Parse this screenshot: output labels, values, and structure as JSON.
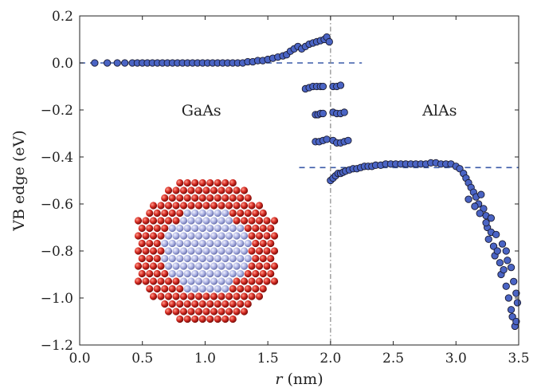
{
  "chart_data": {
    "type": "scatter",
    "xlabel_var": "r",
    "xlabel_unit": " (nm)",
    "ylabel": "VB edge (eV)",
    "xlim": [
      0.0,
      3.5
    ],
    "ylim": [
      -1.2,
      0.2
    ],
    "x_ticks": [
      0.0,
      0.5,
      1.0,
      1.5,
      2.0,
      2.5,
      3.0,
      3.5
    ],
    "x_tick_labels": [
      "0.0",
      "0.5",
      "1.0",
      "1.5",
      "2.0",
      "2.5",
      "3.0",
      "3.5"
    ],
    "y_ticks": [
      0.2,
      0.0,
      -0.2,
      -0.4,
      -0.6,
      -0.8,
      -1.0,
      -1.2
    ],
    "y_tick_labels": [
      "0.2",
      "0.0",
      "−0.2",
      "−0.4",
      "−0.6",
      "−0.8",
      "−1.0",
      "−1.2"
    ],
    "annotations": [
      {
        "text": "GaAs",
        "x": 0.97,
        "y": -0.2
      },
      {
        "text": "AlAs",
        "x": 2.87,
        "y": -0.2
      }
    ],
    "reference_lines": [
      {
        "kind": "hline",
        "y": 0.0,
        "x_range": [
          0.0,
          2.25
        ],
        "style": "dashed",
        "color": "#3a5aa8"
      },
      {
        "kind": "hline",
        "y": -0.445,
        "x_range": [
          1.75,
          3.5
        ],
        "style": "dashed",
        "color": "#3a5aa8"
      },
      {
        "kind": "vline",
        "x": 2.0,
        "style": "dash-dot",
        "color": "#888888"
      }
    ],
    "marker_color": "#4a64c4",
    "marker_edge": "#1a1a2e",
    "inset": {
      "description_icon": "nanoparticle-structure",
      "core_color": "#a9b0e0",
      "shell_color": "#cc2a2a"
    },
    "series": [
      {
        "points": [
          [
            0.12,
            0.0
          ],
          [
            0.22,
            0.0
          ],
          [
            0.3,
            0.0
          ],
          [
            0.36,
            0.0
          ],
          [
            0.42,
            0.0
          ],
          [
            0.46,
            0.0
          ],
          [
            0.5,
            0.0
          ],
          [
            0.54,
            0.0
          ],
          [
            0.58,
            0.0
          ],
          [
            0.62,
            0.0
          ],
          [
            0.66,
            0.0
          ],
          [
            0.7,
            0.0
          ],
          [
            0.74,
            0.0
          ],
          [
            0.78,
            0.0
          ],
          [
            0.82,
            0.0
          ],
          [
            0.86,
            0.0
          ],
          [
            0.9,
            0.0
          ],
          [
            0.94,
            0.0
          ],
          [
            0.98,
            0.0
          ],
          [
            1.02,
            0.0
          ],
          [
            1.06,
            0.0
          ],
          [
            1.1,
            0.0
          ],
          [
            1.14,
            0.0
          ],
          [
            1.18,
            0.0
          ],
          [
            1.22,
            0.0
          ],
          [
            1.26,
            0.0
          ],
          [
            1.3,
            0.0
          ],
          [
            1.34,
            0.005
          ],
          [
            1.38,
            0.005
          ],
          [
            1.42,
            0.01
          ],
          [
            1.46,
            0.01
          ],
          [
            1.5,
            0.015
          ],
          [
            1.54,
            0.02
          ],
          [
            1.58,
            0.025
          ],
          [
            1.62,
            0.03
          ],
          [
            1.65,
            0.035
          ],
          [
            1.68,
            0.05
          ],
          [
            1.71,
            0.06
          ],
          [
            1.74,
            0.07
          ],
          [
            1.77,
            0.06
          ],
          [
            1.8,
            0.07
          ],
          [
            1.83,
            0.08
          ],
          [
            1.86,
            0.085
          ],
          [
            1.89,
            0.09
          ],
          [
            1.92,
            0.095
          ],
          [
            1.95,
            0.1
          ],
          [
            1.97,
            0.11
          ],
          [
            1.99,
            0.09
          ],
          [
            1.8,
            -0.11
          ],
          [
            1.83,
            -0.105
          ],
          [
            1.86,
            -0.1
          ],
          [
            1.89,
            -0.1
          ],
          [
            1.92,
            -0.1
          ],
          [
            1.94,
            -0.1
          ],
          [
            1.88,
            -0.22
          ],
          [
            1.9,
            -0.22
          ],
          [
            1.92,
            -0.215
          ],
          [
            1.94,
            -0.215
          ],
          [
            1.88,
            -0.335
          ],
          [
            1.91,
            -0.335
          ],
          [
            1.94,
            -0.33
          ],
          [
            1.97,
            -0.325
          ],
          [
            2.02,
            -0.33
          ],
          [
            2.05,
            -0.34
          ],
          [
            2.08,
            -0.34
          ],
          [
            2.11,
            -0.335
          ],
          [
            2.14,
            -0.33
          ],
          [
            2.02,
            -0.21
          ],
          [
            2.05,
            -0.215
          ],
          [
            2.08,
            -0.215
          ],
          [
            2.11,
            -0.21
          ],
          [
            2.02,
            -0.1
          ],
          [
            2.05,
            -0.1
          ],
          [
            2.08,
            -0.095
          ],
          [
            2.0,
            -0.5
          ],
          [
            2.02,
            -0.49
          ],
          [
            2.04,
            -0.48
          ],
          [
            2.06,
            -0.47
          ],
          [
            2.08,
            -0.47
          ],
          [
            2.1,
            -0.465
          ],
          [
            2.12,
            -0.46
          ],
          [
            2.15,
            -0.455
          ],
          [
            2.18,
            -0.45
          ],
          [
            2.21,
            -0.45
          ],
          [
            2.24,
            -0.445
          ],
          [
            2.27,
            -0.44
          ],
          [
            2.3,
            -0.44
          ],
          [
            2.33,
            -0.44
          ],
          [
            2.36,
            -0.435
          ],
          [
            2.4,
            -0.435
          ],
          [
            2.44,
            -0.43
          ],
          [
            2.48,
            -0.43
          ],
          [
            2.52,
            -0.43
          ],
          [
            2.56,
            -0.43
          ],
          [
            2.6,
            -0.43
          ],
          [
            2.64,
            -0.43
          ],
          [
            2.68,
            -0.43
          ],
          [
            2.72,
            -0.43
          ],
          [
            2.76,
            -0.43
          ],
          [
            2.8,
            -0.425
          ],
          [
            2.84,
            -0.425
          ],
          [
            2.88,
            -0.43
          ],
          [
            2.92,
            -0.43
          ],
          [
            2.96,
            -0.43
          ],
          [
            3.0,
            -0.44
          ],
          [
            3.03,
            -0.45
          ],
          [
            3.06,
            -0.47
          ],
          [
            3.08,
            -0.49
          ],
          [
            3.1,
            -0.51
          ],
          [
            3.12,
            -0.53
          ],
          [
            3.14,
            -0.55
          ],
          [
            3.16,
            -0.57
          ],
          [
            3.18,
            -0.6
          ],
          [
            3.2,
            -0.56
          ],
          [
            3.22,
            -0.62
          ],
          [
            3.24,
            -0.65
          ],
          [
            3.25,
            -0.7
          ],
          [
            3.26,
            -0.75
          ],
          [
            3.28,
            -0.72
          ],
          [
            3.3,
            -0.78
          ],
          [
            3.31,
            -0.82
          ],
          [
            3.33,
            -0.8
          ],
          [
            3.35,
            -0.85
          ],
          [
            3.36,
            -0.9
          ],
          [
            3.38,
            -0.88
          ],
          [
            3.4,
            -0.95
          ],
          [
            3.42,
            -1.0
          ],
          [
            3.44,
            -1.05
          ],
          [
            3.45,
            -1.08
          ],
          [
            3.47,
            -1.12
          ],
          [
            3.48,
            -1.1
          ],
          [
            3.49,
            -1.02
          ],
          [
            3.1,
            -0.58
          ],
          [
            3.15,
            -0.61
          ],
          [
            3.19,
            -0.64
          ],
          [
            3.24,
            -0.68
          ],
          [
            3.28,
            -0.66
          ],
          [
            3.32,
            -0.73
          ],
          [
            3.37,
            -0.77
          ],
          [
            3.41,
            -0.84
          ],
          [
            3.46,
            -0.93
          ],
          [
            3.48,
            -0.98
          ],
          [
            3.44,
            -0.87
          ],
          [
            3.4,
            -0.8
          ]
        ]
      }
    ]
  }
}
